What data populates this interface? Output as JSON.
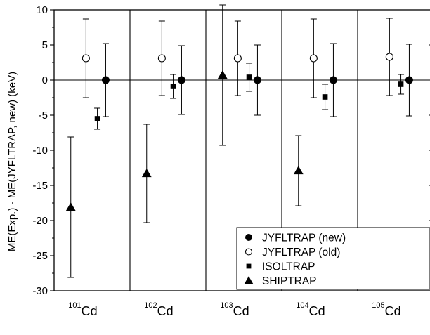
{
  "chart_data": {
    "type": "scatter",
    "ylabel": "ME(Exp.) - ME(JYFLTRAP, new) (keV)",
    "ylim": [
      -30,
      10
    ],
    "yticks": [
      10,
      5,
      0,
      -5,
      -10,
      -15,
      -20,
      -25,
      -30
    ],
    "zero_line": true,
    "legend_position": "bottom-right",
    "categories": [
      {
        "sup": "101",
        "text": "Cd"
      },
      {
        "sup": "102",
        "text": "Cd"
      },
      {
        "sup": "103",
        "text": "Cd"
      },
      {
        "sup": "104",
        "text": "Cd"
      },
      {
        "sup": "105",
        "text": "Cd"
      }
    ],
    "series": [
      {
        "name": "JYFLTRAP (new)",
        "marker": "filled-circle",
        "color": "#000000",
        "points": [
          {
            "category": 0,
            "y": 0.0,
            "err": 5.2
          },
          {
            "category": 1,
            "y": 0.0,
            "err": 4.9
          },
          {
            "category": 2,
            "y": 0.0,
            "err": 5.0
          },
          {
            "category": 3,
            "y": 0.0,
            "err": 5.2
          },
          {
            "category": 4,
            "y": 0.0,
            "err": 5.1
          }
        ]
      },
      {
        "name": "JYFLTRAP (old)",
        "marker": "open-circle",
        "color": "#000000",
        "points": [
          {
            "category": 0,
            "y": 3.1,
            "err": 5.6
          },
          {
            "category": 1,
            "y": 3.1,
            "err": 5.3
          },
          {
            "category": 2,
            "y": 3.1,
            "err": 5.3
          },
          {
            "category": 3,
            "y": 3.1,
            "err": 5.6
          },
          {
            "category": 4,
            "y": 3.3,
            "err": 5.5
          }
        ]
      },
      {
        "name": "ISOLTRAP",
        "marker": "filled-square",
        "color": "#000000",
        "points": [
          {
            "category": 0,
            "y": -5.5,
            "err": 1.5
          },
          {
            "category": 1,
            "y": -0.9,
            "err": 1.7
          },
          {
            "category": 2,
            "y": 0.4,
            "err": 2.0
          },
          {
            "category": 3,
            "y": -2.4,
            "err": 1.8
          },
          {
            "category": 4,
            "y": -0.6,
            "err": 1.4
          }
        ]
      },
      {
        "name": "SHIPTRAP",
        "marker": "filled-triangle",
        "color": "#000000",
        "points": [
          {
            "category": 0,
            "y": -18.1,
            "err": 10.0
          },
          {
            "category": 1,
            "y": -13.3,
            "err": 7.0
          },
          {
            "category": 2,
            "y": 0.7,
            "err": 10.0
          },
          {
            "category": 3,
            "y": -12.9,
            "err": 5.0
          }
        ]
      }
    ]
  }
}
